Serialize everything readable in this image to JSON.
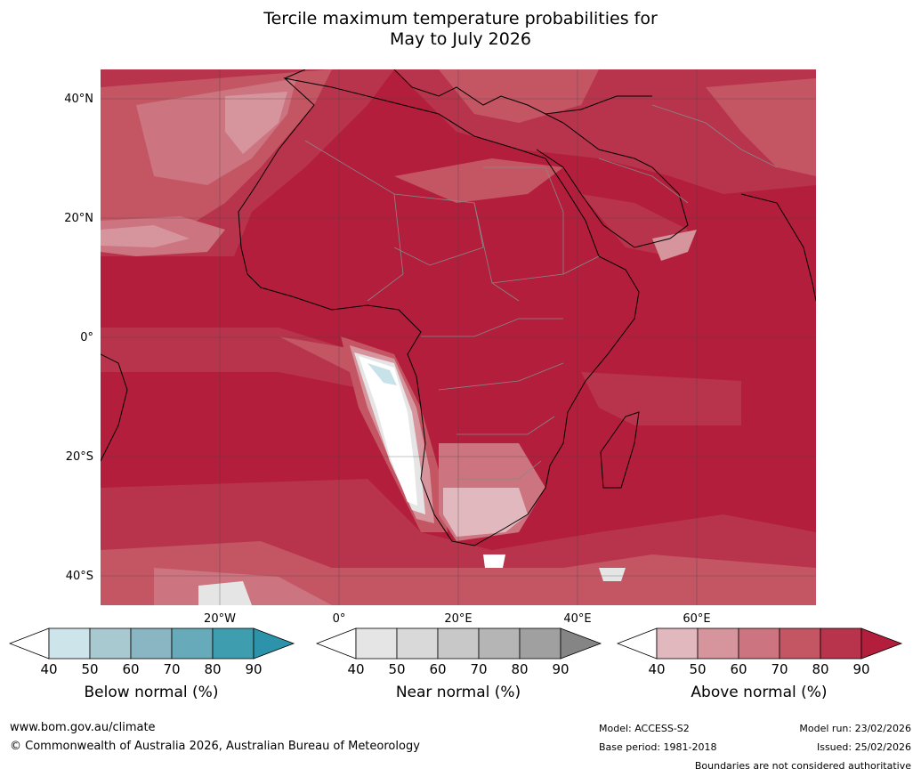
{
  "title_line1": "Tercile maximum temperature probabilities for",
  "title_line2": "May to July 2026",
  "map": {
    "lat_labels": [
      "40°N",
      "20°N",
      "0°",
      "20°S",
      "40°S"
    ],
    "lon_labels": [
      "20°W",
      "0°",
      "20°E",
      "40°E",
      "60°E"
    ],
    "colors": {
      "above_90": "#b21e3c",
      "above_80": "#b8344c",
      "above_70": "#c45664",
      "above_60": "#cc7480",
      "above_50": "#d6949c",
      "above_40": "#e2b8bf",
      "near": "#e5e5e5",
      "below_50": "#c8e2e9",
      "land_border": "#888888",
      "coast": "#000000"
    }
  },
  "colorbars": [
    {
      "id": "below",
      "title": "Below normal (%)",
      "ticks": [
        "40",
        "50",
        "60",
        "70",
        "80",
        "90"
      ],
      "colors": [
        "#cde4eb",
        "#a9c9d0",
        "#8ab6c3",
        "#67aab9",
        "#3f9db0",
        "#2c93aa"
      ]
    },
    {
      "id": "near",
      "title": "Near normal (%)",
      "ticks": [
        "40",
        "50",
        "60",
        "70",
        "80",
        "90"
      ],
      "colors": [
        "#e5e5e5",
        "#d9d9d9",
        "#c8c8c8",
        "#b5b5b5",
        "#a0a0a0",
        "#858585"
      ]
    },
    {
      "id": "above",
      "title": "Above normal (%)",
      "ticks": [
        "40",
        "50",
        "60",
        "70",
        "80",
        "90"
      ],
      "colors": [
        "#e2b8bf",
        "#d6949c",
        "#cc7480",
        "#c45664",
        "#b8344c",
        "#b21e3c"
      ]
    }
  ],
  "footer": {
    "website": "www.bom.gov.au/climate",
    "copyright": "© Commonwealth of Australia 2026, Australian Bureau of Meteorology",
    "model": "Model: ACCESS-S2",
    "base_period": "Base period: 1981-2018",
    "model_run": "Model run: 23/02/2026",
    "issued": "Issued: 25/02/2026",
    "disclaimer": "Boundaries are not considered authoritative"
  }
}
